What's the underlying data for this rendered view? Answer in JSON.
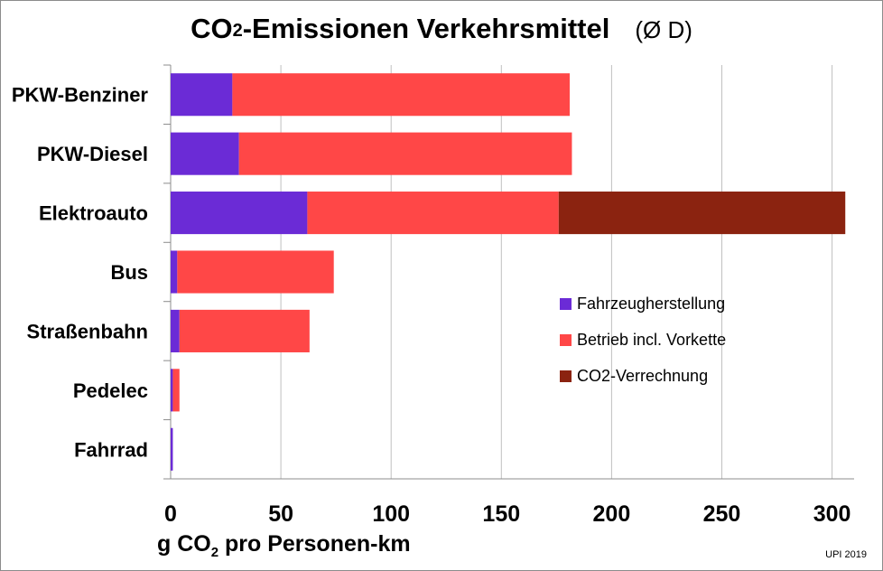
{
  "chart_data": {
    "type": "bar",
    "orientation": "horizontal",
    "stacked": true,
    "title": {
      "main": "CO",
      "sub": "2",
      "rest": "-Emissionen Verkehrsmittel",
      "note": "(Ø D)"
    },
    "xlabel": {
      "prefix": "g CO",
      "sub": "2",
      "suffix": " pro Personen-km"
    },
    "xlim": [
      0,
      310
    ],
    "xticks": [
      "0",
      "50",
      "100",
      "150",
      "200",
      "250",
      "300"
    ],
    "grid": true,
    "legend_position": "right",
    "categories": [
      "PKW-Benziner",
      "PKW-Diesel",
      "Elektroauto",
      "Bus",
      "Straßenbahn",
      "Pedelec",
      "Fahrrad"
    ],
    "series": [
      {
        "name": "Fahrzeugherstellung",
        "color": "#6b2bd6",
        "values": [
          28,
          31,
          62,
          3,
          4,
          1,
          1
        ]
      },
      {
        "name": "Betrieb incl. Vorkette",
        "color": "#ff4747",
        "values": [
          153,
          151,
          114,
          71,
          59,
          3,
          0
        ]
      },
      {
        "name": "CO2-Verrechnung",
        "color": "#8b2310",
        "values": [
          0,
          0,
          130,
          0,
          0,
          0,
          0
        ]
      }
    ],
    "source": "UPI 2019"
  }
}
